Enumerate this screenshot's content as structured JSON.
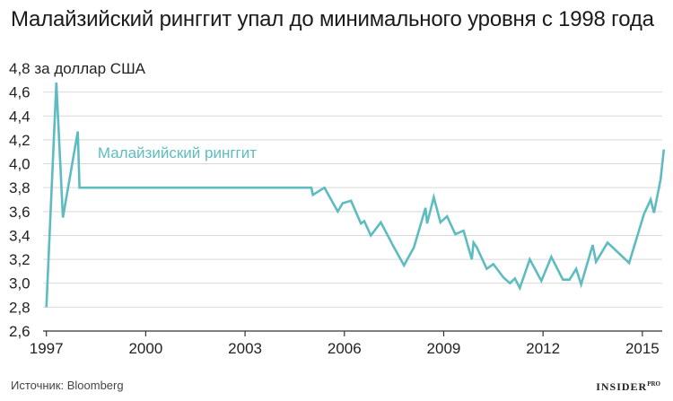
{
  "title": "Малайзийский ринггит упал до минимального уровня с 1998 года",
  "source": "Источник: Bloomberg",
  "brand": {
    "main": "INSIDER",
    "sup": "PRO"
  },
  "colors": {
    "series": "#5ebcc0",
    "grid": "#d9d9d9",
    "axis": "#333333"
  },
  "chart_data": {
    "type": "line",
    "ylabel": "4,8 за доллар США",
    "ylim": [
      2.6,
      4.8
    ],
    "xlim": [
      1996.9,
      2015.6
    ],
    "yticks": [
      2.6,
      2.8,
      3.0,
      3.2,
      3.4,
      3.6,
      3.8,
      4.0,
      4.2,
      4.4,
      4.6
    ],
    "ytick_labels": [
      "2,6",
      "2,8",
      "3,0",
      "3,2",
      "3,4",
      "3,6",
      "3,8",
      "4,0",
      "4,2",
      "4,4",
      "4,6"
    ],
    "xticks": [
      1997,
      2000,
      2003,
      2006,
      2009,
      2012,
      2015
    ],
    "xtick_labels": [
      "1997",
      "2000",
      "2003",
      "2006",
      "2009",
      "2012",
      "2015"
    ],
    "grid": "horizontal",
    "series": [
      {
        "name": "Малайзийский ринггит",
        "label_position": "above-line-left",
        "points": [
          [
            1997.0,
            2.8
          ],
          [
            1997.3,
            4.68
          ],
          [
            1997.5,
            3.55
          ],
          [
            1997.95,
            4.27
          ],
          [
            1998.0,
            3.8
          ],
          [
            1998.5,
            3.8
          ],
          [
            1999.0,
            3.8
          ],
          [
            2000.0,
            3.8
          ],
          [
            2001.0,
            3.8
          ],
          [
            2002.0,
            3.8
          ],
          [
            2003.0,
            3.8
          ],
          [
            2004.0,
            3.8
          ],
          [
            2005.0,
            3.8
          ],
          [
            2005.05,
            3.74
          ],
          [
            2005.4,
            3.8
          ],
          [
            2005.8,
            3.6
          ],
          [
            2005.95,
            3.67
          ],
          [
            2006.2,
            3.69
          ],
          [
            2006.5,
            3.5
          ],
          [
            2006.6,
            3.52
          ],
          [
            2006.8,
            3.4
          ],
          [
            2007.1,
            3.51
          ],
          [
            2007.5,
            3.3
          ],
          [
            2007.8,
            3.15
          ],
          [
            2008.1,
            3.3
          ],
          [
            2008.45,
            3.63
          ],
          [
            2008.5,
            3.5
          ],
          [
            2008.7,
            3.72
          ],
          [
            2008.9,
            3.51
          ],
          [
            2009.1,
            3.56
          ],
          [
            2009.35,
            3.41
          ],
          [
            2009.6,
            3.44
          ],
          [
            2009.85,
            3.2
          ],
          [
            2009.9,
            3.34
          ],
          [
            2010.0,
            3.3
          ],
          [
            2010.3,
            3.12
          ],
          [
            2010.5,
            3.16
          ],
          [
            2010.8,
            3.05
          ],
          [
            2011.0,
            3.0
          ],
          [
            2011.15,
            3.04
          ],
          [
            2011.3,
            2.96
          ],
          [
            2011.6,
            3.2
          ],
          [
            2011.95,
            3.02
          ],
          [
            2012.25,
            3.22
          ],
          [
            2012.6,
            3.03
          ],
          [
            2012.8,
            3.03
          ],
          [
            2013.0,
            3.12
          ],
          [
            2013.15,
            2.99
          ],
          [
            2013.5,
            3.32
          ],
          [
            2013.6,
            3.18
          ],
          [
            2013.95,
            3.34
          ],
          [
            2014.6,
            3.17
          ],
          [
            2015.05,
            3.58
          ],
          [
            2015.25,
            3.7
          ],
          [
            2015.35,
            3.59
          ],
          [
            2015.55,
            3.87
          ],
          [
            2015.65,
            4.12
          ]
        ]
      }
    ]
  }
}
